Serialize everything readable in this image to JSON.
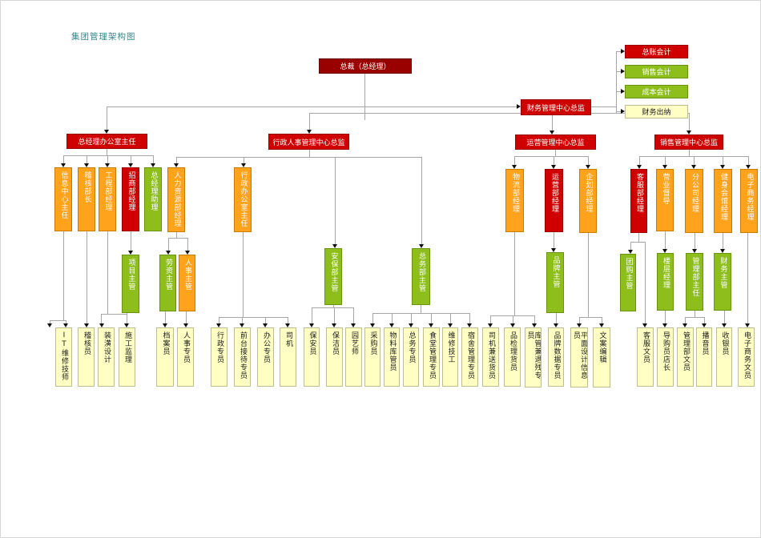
{
  "title": "集团管理架构图",
  "title_color": "#35888a",
  "line_color": "#a6a6a6",
  "arrow_color": "#111111",
  "colors": {
    "darkred": "#990000",
    "red": "#d00000",
    "orange": "#ffa21c",
    "green": "#8dbe1c",
    "yellow": "#ffffc4"
  },
  "nodes": [
    {
      "id": "ceo",
      "label": "总裁（总经理）",
      "color": "darkred",
      "parent": null
    },
    {
      "id": "fin-center-director",
      "label": "财务管理中心总监",
      "color": "red",
      "parent": "ceo"
    },
    {
      "id": "general-ledger-accountant",
      "label": "总账会计",
      "color": "red",
      "parent": "fin-center-director"
    },
    {
      "id": "sales-accountant",
      "label": "销售会计",
      "color": "green",
      "parent": "fin-center-director"
    },
    {
      "id": "cost-accountant",
      "label": "成本会计",
      "color": "green",
      "parent": "fin-center-director"
    },
    {
      "id": "cashier-finance",
      "label": "财务出纳",
      "color": "yellow",
      "parent": "fin-center-director"
    },
    {
      "id": "gm-office-director",
      "label": "总经理办公室主任",
      "color": "red",
      "parent": "ceo"
    },
    {
      "id": "hr-admin-director",
      "label": "行政人事管理中心总监",
      "color": "red",
      "parent": "ceo"
    },
    {
      "id": "ops-center-director",
      "label": "运营管理中心总监",
      "color": "red",
      "parent": "ceo"
    },
    {
      "id": "sales-center-director",
      "label": "销售管理中心总监",
      "color": "red",
      "parent": "ceo"
    },
    {
      "id": "info-center-director",
      "label": "信息中心主任",
      "color": "orange",
      "parent": "gm-office-director"
    },
    {
      "id": "audit-chief",
      "label": "稽核部长",
      "color": "orange",
      "parent": "gm-office-director"
    },
    {
      "id": "engineering-mgr",
      "label": "工程部经理",
      "color": "orange",
      "parent": "gm-office-director"
    },
    {
      "id": "investment-mgr",
      "label": "招商部经理",
      "color": "red",
      "parent": "gm-office-director"
    },
    {
      "id": "gm-assistant",
      "label": "总经理助理",
      "color": "green",
      "parent": "gm-office-director"
    },
    {
      "id": "hr-mgr",
      "label": "人力资源部经理",
      "color": "orange",
      "parent": "hr-admin-director"
    },
    {
      "id": "admin-office-director",
      "label": "行政办公室主任",
      "color": "orange",
      "parent": "hr-admin-director"
    },
    {
      "id": "security-supervisor",
      "label": "安保部主管",
      "color": "green",
      "parent": "hr-admin-director"
    },
    {
      "id": "general-affairs-supervisor",
      "label": "总务部主管",
      "color": "green",
      "parent": "hr-admin-director"
    },
    {
      "id": "logistics-mgr",
      "label": "物流部经理",
      "color": "orange",
      "parent": "ops-center-director"
    },
    {
      "id": "operations-mgr",
      "label": "运营部经理",
      "color": "red",
      "parent": "ops-center-director"
    },
    {
      "id": "planning-mgr",
      "label": "企划部经理",
      "color": "orange",
      "parent": "ops-center-director"
    },
    {
      "id": "customer-service-mgr",
      "label": "客服部经理",
      "color": "red",
      "parent": "sales-center-director"
    },
    {
      "id": "business-supervisor",
      "label": "营业督导",
      "color": "orange",
      "parent": "sales-center-director"
    },
    {
      "id": "branch-company-mgr",
      "label": "分公司经理",
      "color": "orange",
      "parent": "sales-center-director"
    },
    {
      "id": "gym-mgr",
      "label": "健身会馆经理",
      "color": "orange",
      "parent": "sales-center-director"
    },
    {
      "id": "ecommerce-mgr",
      "label": "电子商务经理",
      "color": "orange",
      "parent": "sales-center-director"
    },
    {
      "id": "project-supervisor",
      "label": "项目主管",
      "color": "green",
      "parent": "investment-mgr"
    },
    {
      "id": "labor-supervisor",
      "label": "劳资主管",
      "color": "green",
      "parent": "hr-mgr"
    },
    {
      "id": "personnel-supervisor",
      "label": "人事主管",
      "color": "orange",
      "parent": "hr-mgr"
    },
    {
      "id": "brand-supervisor",
      "label": "品牌主管",
      "color": "green",
      "parent": "operations-mgr"
    },
    {
      "id": "group-buying-supervisor",
      "label": "团购主管",
      "color": "green",
      "parent": "customer-service-mgr"
    },
    {
      "id": "floor-mgr",
      "label": "楼层经理",
      "color": "green",
      "parent": "business-supervisor"
    },
    {
      "id": "mgmt-dept-director",
      "label": "管理部主任",
      "color": "green",
      "parent": "branch-company-mgr"
    },
    {
      "id": "finance-supervisor",
      "label": "财务主管",
      "color": "green",
      "parent": "gym-mgr"
    },
    {
      "id": "it-technician",
      "label": "IT维修技师",
      "color": "yellow",
      "parent": "info-center-director"
    },
    {
      "id": "auditor",
      "label": "稽核员",
      "color": "yellow",
      "parent": "audit-chief"
    },
    {
      "id": "decoration-designer",
      "label": "装潢设计",
      "color": "yellow",
      "parent": "engineering-mgr"
    },
    {
      "id": "construction-supervisor",
      "label": "施工监理",
      "color": "yellow",
      "parent": "project-supervisor"
    },
    {
      "id": "archivist",
      "label": "档案员",
      "color": "yellow",
      "parent": "labor-supervisor"
    },
    {
      "id": "personnel-specialist",
      "label": "人事专员",
      "color": "yellow",
      "parent": "personnel-supervisor"
    },
    {
      "id": "admin-specialist",
      "label": "行政专员",
      "color": "yellow",
      "parent": "admin-office-director"
    },
    {
      "id": "reception-specialist",
      "label": "前台接待专员",
      "color": "yellow",
      "parent": "admin-office-director"
    },
    {
      "id": "office-specialist",
      "label": "办公专员",
      "color": "yellow",
      "parent": "admin-office-director"
    },
    {
      "id": "driver",
      "label": "司机",
      "color": "yellow",
      "parent": "admin-office-director"
    },
    {
      "id": "security-guard",
      "label": "保安员",
      "color": "yellow",
      "parent": "security-supervisor"
    },
    {
      "id": "cleaner",
      "label": "保洁员",
      "color": "yellow",
      "parent": "security-supervisor"
    },
    {
      "id": "gardener",
      "label": "园艺师",
      "color": "yellow",
      "parent": "security-supervisor"
    },
    {
      "id": "purchaser",
      "label": "采购员",
      "color": "yellow",
      "parent": "general-affairs-supervisor"
    },
    {
      "id": "materials-warehouse-keeper",
      "label": "物料库管员",
      "color": "yellow",
      "parent": "general-affairs-supervisor"
    },
    {
      "id": "general-affairs-specialist",
      "label": "总务专员",
      "color": "yellow",
      "parent": "general-affairs-supervisor"
    },
    {
      "id": "canteen-mgmt-specialist",
      "label": "食堂管理专员",
      "color": "yellow",
      "parent": "general-affairs-supervisor"
    },
    {
      "id": "maintenance-worker",
      "label": "维修技工",
      "color": "yellow",
      "parent": "general-affairs-supervisor"
    },
    {
      "id": "dormitory-mgmt-specialist",
      "label": "宿舍管理专员",
      "color": "yellow",
      "parent": "general-affairs-supervisor"
    },
    {
      "id": "driver-deliveryman",
      "label": "司机兼送货员",
      "color": "yellow",
      "parent": "logistics-mgr"
    },
    {
      "id": "qc-stock-clerk",
      "label": "品检理货员",
      "color": "yellow",
      "parent": "logistics-mgr"
    },
    {
      "id": "warehouse-returns-specialist",
      "label": "库管兼退残专员",
      "color": "yellow",
      "parent": "logistics-mgr"
    },
    {
      "id": "brand-data-specialist",
      "label": "品牌数据专员",
      "color": "yellow",
      "parent": "brand-supervisor"
    },
    {
      "id": "graphic-design-info-clerk",
      "label": "平面设计信息员",
      "color": "yellow",
      "parent": "planning-mgr"
    },
    {
      "id": "copywriter",
      "label": "文案编辑",
      "color": "yellow",
      "parent": "planning-mgr"
    },
    {
      "id": "cs-clerk",
      "label": "客服文员",
      "color": "yellow",
      "parent": "customer-service-mgr"
    },
    {
      "id": "shopping-guide-store-mgr",
      "label": "导购员店长",
      "color": "yellow",
      "parent": "floor-mgr"
    },
    {
      "id": "mgmt-dept-clerk",
      "label": "管理部文员",
      "color": "yellow",
      "parent": "mgmt-dept-director"
    },
    {
      "id": "announcer",
      "label": "播音员",
      "color": "yellow",
      "parent": "mgmt-dept-director"
    },
    {
      "id": "cashier",
      "label": "收银员",
      "color": "yellow",
      "parent": "finance-supervisor"
    },
    {
      "id": "ecommerce-clerk",
      "label": "电子商务文员",
      "color": "yellow",
      "parent": "ecommerce-mgr"
    }
  ]
}
